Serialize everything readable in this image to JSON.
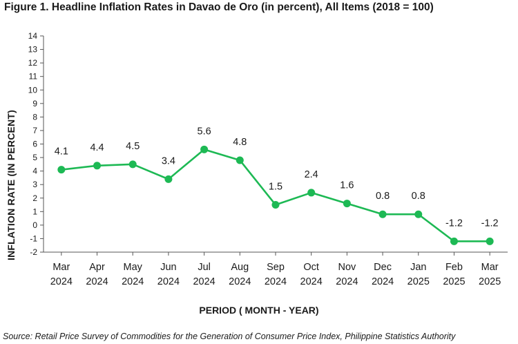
{
  "title": "Figure 1. Headline Inflation Rates in Davao de Oro (in percent), All Items (2018 = 100)",
  "source": "Source: Retail Price Survey of Commodities for the Generation of Consumer Price Index, Philippine Statistics Authority",
  "colors": {
    "line": "#1db954",
    "axis": "#555555",
    "text": "#1a1a1a"
  },
  "chart_data": {
    "type": "line",
    "title": "Figure 1. Headline Inflation Rates in Davao de Oro (in percent), All Items (2018 = 100)",
    "xlabel": "PERIOD ( MONTH - YEAR)",
    "ylabel": "INFLATION RATE (IN PERCENT)",
    "ylim": [
      -2,
      14
    ],
    "yticks": [
      -2,
      -1,
      0,
      1,
      2,
      3,
      4,
      5,
      6,
      7,
      8,
      9,
      10,
      11,
      12,
      13,
      14
    ],
    "grid": false,
    "categories": [
      [
        "Mar",
        "2024"
      ],
      [
        "Apr",
        "2024"
      ],
      [
        "May",
        "2024"
      ],
      [
        "Jun",
        "2024"
      ],
      [
        "Jul",
        "2024"
      ],
      [
        "Aug",
        "2024"
      ],
      [
        "Sep",
        "2024"
      ],
      [
        "Oct",
        "2024"
      ],
      [
        "Nov",
        "2024"
      ],
      [
        "Dec",
        "2024"
      ],
      [
        "Jan",
        "2025"
      ],
      [
        "Feb",
        "2025"
      ],
      [
        "Mar",
        "2025"
      ]
    ],
    "values": [
      4.1,
      4.4,
      4.5,
      3.4,
      5.6,
      4.8,
      1.5,
      2.4,
      1.6,
      0.8,
      0.8,
      -1.2,
      -1.2
    ],
    "data_labels": [
      "4.1",
      "4.4",
      "4.5",
      "3.4",
      "5.6",
      "4.8",
      "1.5",
      "2.4",
      "1.6",
      "0.8",
      "0.8",
      "-1.2",
      "-1.2"
    ]
  }
}
